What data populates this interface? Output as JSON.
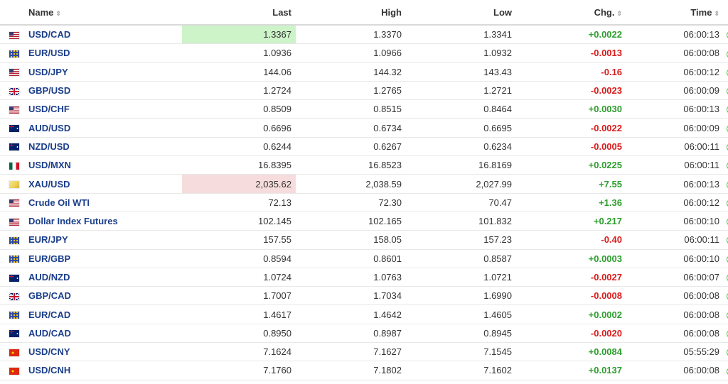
{
  "columns": {
    "name": "Name",
    "last": "Last",
    "high": "High",
    "low": "Low",
    "chg": "Chg.",
    "time": "Time"
  },
  "colors": {
    "positive": "#2e9e2e",
    "negative": "#d91c1c",
    "link": "#1a3e8b",
    "flash_up": "#cdf3c8",
    "flash_down": "#f6dcdc"
  },
  "rows": [
    {
      "flag": "us-flag-icon",
      "name": "USD/CAD",
      "last": "1.3367",
      "high": "1.3370",
      "low": "1.3341",
      "chg": "+0.0022",
      "time": "06:00:13",
      "dir": "pos",
      "flash": "up"
    },
    {
      "flag": "eu-flag-icon",
      "name": "EUR/USD",
      "last": "1.0936",
      "high": "1.0966",
      "low": "1.0932",
      "chg": "-0.0013",
      "time": "06:00:08",
      "dir": "neg",
      "flash": ""
    },
    {
      "flag": "us-flag-icon",
      "name": "USD/JPY",
      "last": "144.06",
      "high": "144.32",
      "low": "143.43",
      "chg": "-0.16",
      "time": "06:00:12",
      "dir": "neg",
      "flash": ""
    },
    {
      "flag": "gb-flag-icon",
      "name": "GBP/USD",
      "last": "1.2724",
      "high": "1.2765",
      "low": "1.2721",
      "chg": "-0.0023",
      "time": "06:00:09",
      "dir": "neg",
      "flash": ""
    },
    {
      "flag": "us-flag-icon",
      "name": "USD/CHF",
      "last": "0.8509",
      "high": "0.8515",
      "low": "0.8464",
      "chg": "+0.0030",
      "time": "06:00:13",
      "dir": "pos",
      "flash": ""
    },
    {
      "flag": "au-flag-icon",
      "name": "AUD/USD",
      "last": "0.6696",
      "high": "0.6734",
      "low": "0.6695",
      "chg": "-0.0022",
      "time": "06:00:09",
      "dir": "neg",
      "flash": ""
    },
    {
      "flag": "au-flag-icon",
      "name": "NZD/USD",
      "last": "0.6244",
      "high": "0.6267",
      "low": "0.6234",
      "chg": "-0.0005",
      "time": "06:00:11",
      "dir": "neg",
      "flash": ""
    },
    {
      "flag": "mx-flag-icon",
      "name": "USD/MXN",
      "last": "16.8395",
      "high": "16.8523",
      "low": "16.8169",
      "chg": "+0.0225",
      "time": "06:00:11",
      "dir": "pos",
      "flash": ""
    },
    {
      "flag": "gold-icon",
      "name": "XAU/USD",
      "last": "2,035.62",
      "high": "2,038.59",
      "low": "2,027.99",
      "chg": "+7.55",
      "time": "06:00:13",
      "dir": "pos",
      "flash": "down"
    },
    {
      "flag": "us-flag-icon",
      "name": "Crude Oil WTI",
      "last": "72.13",
      "high": "72.30",
      "low": "70.47",
      "chg": "+1.36",
      "time": "06:00:12",
      "dir": "pos",
      "flash": ""
    },
    {
      "flag": "us-flag-icon",
      "name": "Dollar Index Futures",
      "last": "102.145",
      "high": "102.165",
      "low": "101.832",
      "chg": "+0.217",
      "time": "06:00:10",
      "dir": "pos",
      "flash": ""
    },
    {
      "flag": "eu-flag-icon",
      "name": "EUR/JPY",
      "last": "157.55",
      "high": "158.05",
      "low": "157.23",
      "chg": "-0.40",
      "time": "06:00:11",
      "dir": "neg",
      "flash": ""
    },
    {
      "flag": "eu-flag-icon",
      "name": "EUR/GBP",
      "last": "0.8594",
      "high": "0.8601",
      "low": "0.8587",
      "chg": "+0.0003",
      "time": "06:00:10",
      "dir": "pos",
      "flash": ""
    },
    {
      "flag": "au-flag-icon",
      "name": "AUD/NZD",
      "last": "1.0724",
      "high": "1.0763",
      "low": "1.0721",
      "chg": "-0.0027",
      "time": "06:00:07",
      "dir": "neg",
      "flash": ""
    },
    {
      "flag": "gb-flag-icon",
      "name": "GBP/CAD",
      "last": "1.7007",
      "high": "1.7034",
      "low": "1.6990",
      "chg": "-0.0008",
      "time": "06:00:08",
      "dir": "neg",
      "flash": ""
    },
    {
      "flag": "eu-flag-icon",
      "name": "EUR/CAD",
      "last": "1.4617",
      "high": "1.4642",
      "low": "1.4605",
      "chg": "+0.0002",
      "time": "06:00:08",
      "dir": "pos",
      "flash": ""
    },
    {
      "flag": "au-flag-icon",
      "name": "AUD/CAD",
      "last": "0.8950",
      "high": "0.8987",
      "low": "0.8945",
      "chg": "-0.0020",
      "time": "06:00:08",
      "dir": "neg",
      "flash": ""
    },
    {
      "flag": "cn-flag-icon",
      "name": "USD/CNY",
      "last": "7.1624",
      "high": "7.1627",
      "low": "7.1545",
      "chg": "+0.0084",
      "time": "05:55:29",
      "dir": "pos",
      "flash": ""
    },
    {
      "flag": "cn-flag-icon",
      "name": "USD/CNH",
      "last": "7.1760",
      "high": "7.1802",
      "low": "7.1602",
      "chg": "+0.0137",
      "time": "06:00:08",
      "dir": "pos",
      "flash": ""
    }
  ]
}
